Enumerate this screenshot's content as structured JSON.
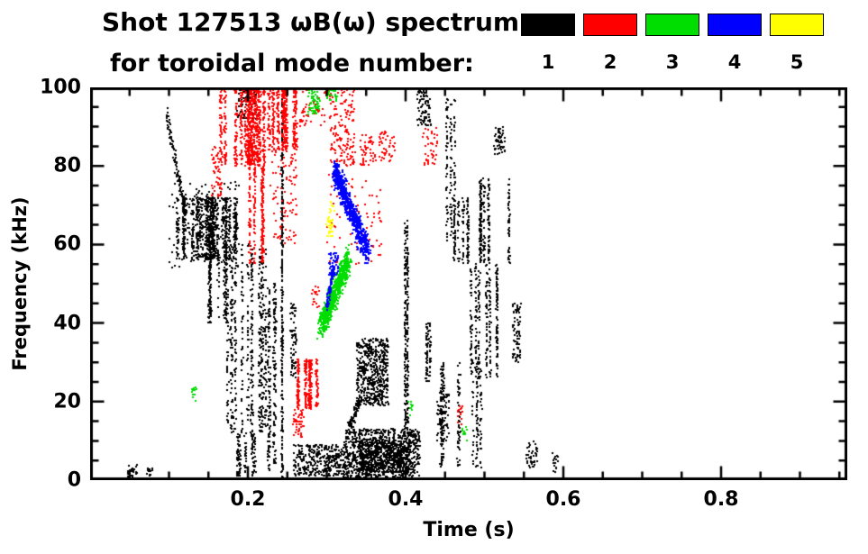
{
  "header": {
    "title_line1": "Shot 127513 ωB(ω) spectrum",
    "title_line2": "for toroidal mode number:",
    "legend": {
      "modes": [
        {
          "label": "1",
          "color": "#000000"
        },
        {
          "label": "2",
          "color": "#ff0000"
        },
        {
          "label": "3",
          "color": "#00dd00"
        },
        {
          "label": "4",
          "color": "#0000ff"
        },
        {
          "label": "5",
          "color": "#ffff00"
        }
      ]
    }
  },
  "chart_data": {
    "type": "scatter",
    "title": "Shot 127513 ωB(ω) spectrum for toroidal mode number",
    "xlabel": "Time (s)",
    "ylabel": "Frequency (kHz)",
    "xlim": [
      0,
      0.96
    ],
    "ylim": [
      0,
      100
    ],
    "x_major_ticks": [
      0.2,
      0.4,
      0.6,
      0.8
    ],
    "x_tick_labels": [
      "0.2",
      "0.4",
      "0.6",
      "0.8"
    ],
    "x_minor_step": 0.05,
    "y_major_ticks": [
      0,
      20,
      40,
      60,
      80,
      100
    ],
    "y_tick_labels": [
      "0",
      "20",
      "40",
      "60",
      "80",
      "100"
    ],
    "y_minor_step": 5,
    "grid": false,
    "legend_position": "top-right",
    "point_size": 2,
    "seed": 42,
    "series": [
      {
        "name": "toroidal mode n=1",
        "color": "#000000",
        "clusters": [
          {
            "shape": "diag",
            "t": [
              0.097,
              0.121
            ],
            "f": [
              93,
              68
            ],
            "n": 110,
            "jt": 0.0025,
            "jf": 2.5
          },
          {
            "shape": "cols",
            "t": [
              0.105,
              0.185
            ],
            "f": [
              56,
              72
            ],
            "n": 900,
            "cols": 26,
            "jt": 0.002
          },
          {
            "shape": "box",
            "t": [
              0.1,
              0.19
            ],
            "f": [
              54,
              76
            ],
            "n": 150
          },
          {
            "shape": "cols",
            "t": [
              0.148,
              0.176
            ],
            "f": [
              40,
              57
            ],
            "n": 180,
            "cols": 8,
            "jt": 0.0015
          },
          {
            "shape": "cols",
            "t": [
              0.168,
              0.225
            ],
            "f": [
              12,
              60
            ],
            "n": 560,
            "cols": 12,
            "jt": 0.0015
          },
          {
            "shape": "cols",
            "t": [
              0.185,
              0.218
            ],
            "f": [
              1,
              12
            ],
            "n": 130,
            "cols": 6,
            "jt": 0.0015
          },
          {
            "shape": "cols",
            "t": [
              0.222,
              0.236
            ],
            "f": [
              2,
              50
            ],
            "n": 200,
            "cols": 4,
            "jt": 0.0015
          },
          {
            "shape": "cols",
            "t": [
              0.238,
              0.245
            ],
            "f": [
              0,
              97
            ],
            "n": 280,
            "cols": 2,
            "jt": 0.0012
          },
          {
            "shape": "cols",
            "t": [
              0.252,
              0.268
            ],
            "f": [
              26,
              45
            ],
            "n": 70,
            "cols": 3,
            "jt": 0.0015
          },
          {
            "shape": "box",
            "t": [
              0.258,
              0.322
            ],
            "f": [
              1,
              9
            ],
            "n": 330
          },
          {
            "shape": "box",
            "t": [
              0.322,
              0.418
            ],
            "f": [
              0,
              13
            ],
            "n": 900
          },
          {
            "shape": "box",
            "t": [
              0.34,
              0.405
            ],
            "f": [
              2,
              10
            ],
            "n": 450
          },
          {
            "shape": "box",
            "t": [
              0.338,
              0.378
            ],
            "f": [
              19,
              36
            ],
            "n": 520
          },
          {
            "shape": "diag",
            "t": [
              0.328,
              0.344
            ],
            "f": [
              13,
              21
            ],
            "n": 90,
            "jt": 0.002,
            "jf": 2
          },
          {
            "shape": "cols",
            "t": [
              0.397,
              0.403
            ],
            "f": [
              13,
              66
            ],
            "n": 240,
            "cols": 2,
            "jt": 0.0012
          },
          {
            "shape": "cols",
            "t": [
              0.436,
              0.496
            ],
            "f": [
              3,
              30
            ],
            "n": 260,
            "cols": 10,
            "jt": 0.0015
          },
          {
            "shape": "cols",
            "t": [
              0.45,
              0.463
            ],
            "f": [
              60,
              97
            ],
            "n": 130,
            "cols": 3,
            "jt": 0.0015
          },
          {
            "shape": "cols",
            "t": [
              0.457,
              0.48
            ],
            "f": [
              55,
              72
            ],
            "n": 150,
            "cols": 5,
            "jt": 0.0015
          },
          {
            "shape": "cols",
            "t": [
              0.483,
              0.52
            ],
            "f": [
              26,
              55
            ],
            "n": 300,
            "cols": 7,
            "jt": 0.0015
          },
          {
            "shape": "cols",
            "t": [
              0.493,
              0.531
            ],
            "f": [
              55,
              77
            ],
            "n": 280,
            "cols": 6,
            "jt": 0.0015
          },
          {
            "shape": "box",
            "t": [
              0.512,
              0.526
            ],
            "f": [
              83,
              90
            ],
            "n": 55
          },
          {
            "shape": "box",
            "t": [
              0.536,
              0.546
            ],
            "f": [
              30,
              45
            ],
            "n": 70
          },
          {
            "shape": "box",
            "t": [
              0.047,
              0.06
            ],
            "f": [
              1,
              4
            ],
            "n": 28
          },
          {
            "shape": "box",
            "t": [
              0.072,
              0.079
            ],
            "f": [
              1,
              3
            ],
            "n": 12
          },
          {
            "shape": "box",
            "t": [
              0.186,
              0.212
            ],
            "f": [
              92,
              100
            ],
            "n": 80
          },
          {
            "shape": "box",
            "t": [
              0.415,
              0.432
            ],
            "f": [
              90,
              100
            ],
            "n": 85
          },
          {
            "shape": "box",
            "t": [
              0.553,
              0.567
            ],
            "f": [
              3,
              10
            ],
            "n": 40
          },
          {
            "shape": "box",
            "t": [
              0.585,
              0.593
            ],
            "f": [
              2,
              7
            ],
            "n": 15
          },
          {
            "shape": "box",
            "t": [
              0.44,
              0.456
            ],
            "f": [
              10,
              22
            ],
            "n": 60
          },
          {
            "shape": "cols",
            "t": [
              0.425,
              0.44
            ],
            "f": [
              25,
              40
            ],
            "n": 80,
            "cols": 3,
            "jt": 0.0015
          }
        ]
      },
      {
        "name": "toroidal mode n=2",
        "color": "#ff0000",
        "clusters": [
          {
            "shape": "cols",
            "t": [
              0.165,
              0.225
            ],
            "f": [
              80,
              100
            ],
            "n": 800,
            "cols": 16,
            "jt": 0.002
          },
          {
            "shape": "cols",
            "t": [
              0.225,
              0.263
            ],
            "f": [
              84,
              100
            ],
            "n": 420,
            "cols": 9,
            "jt": 0.002
          },
          {
            "shape": "cols",
            "t": [
              0.2,
              0.222
            ],
            "f": [
              55,
              80
            ],
            "n": 260,
            "cols": 5,
            "jt": 0.0015
          },
          {
            "shape": "box",
            "t": [
              0.154,
              0.168
            ],
            "f": [
              72,
              85
            ],
            "n": 60
          },
          {
            "shape": "box",
            "t": [
              0.228,
              0.262
            ],
            "f": [
              60,
              84
            ],
            "n": 90
          },
          {
            "shape": "cols",
            "t": [
              0.262,
              0.292
            ],
            "f": [
              18,
              31
            ],
            "n": 330,
            "cols": 6,
            "jt": 0.0018
          },
          {
            "shape": "box",
            "t": [
              0.256,
              0.272
            ],
            "f": [
              11,
              18
            ],
            "n": 45
          },
          {
            "shape": "box",
            "t": [
              0.265,
              0.335
            ],
            "f": [
              90,
              100
            ],
            "n": 120
          },
          {
            "shape": "box",
            "t": [
              0.305,
              0.336
            ],
            "f": [
              80,
              90
            ],
            "n": 90
          },
          {
            "shape": "box",
            "t": [
              0.3,
              0.37
            ],
            "f": [
              55,
              78
            ],
            "n": 70
          },
          {
            "shape": "box",
            "t": [
              0.342,
              0.362
            ],
            "f": [
              80,
              88
            ],
            "n": 50
          },
          {
            "shape": "box",
            "t": [
              0.366,
              0.387
            ],
            "f": [
              81,
              89
            ],
            "n": 45
          },
          {
            "shape": "box",
            "t": [
              0.422,
              0.44
            ],
            "f": [
              80,
              90
            ],
            "n": 40
          },
          {
            "shape": "box",
            "t": [
              0.465,
              0.474
            ],
            "f": [
              14,
              19
            ],
            "n": 14
          },
          {
            "shape": "box",
            "t": [
              0.281,
              0.291
            ],
            "f": [
              44,
              50
            ],
            "n": 18
          }
        ]
      },
      {
        "name": "toroidal mode n=3",
        "color": "#00dd00",
        "clusters": [
          {
            "shape": "diag",
            "t": [
              0.292,
              0.328
            ],
            "f": [
              39,
              56
            ],
            "n": 650,
            "jt": 0.005,
            "jf": 4.5
          },
          {
            "shape": "box",
            "t": [
              0.276,
              0.292
            ],
            "f": [
              93,
              100
            ],
            "n": 70
          },
          {
            "shape": "box",
            "t": [
              0.3,
              0.313
            ],
            "f": [
              96,
              100
            ],
            "n": 25
          },
          {
            "shape": "box",
            "t": [
              0.128,
              0.136
            ],
            "f": [
              20,
              24
            ],
            "n": 12
          },
          {
            "shape": "box",
            "t": [
              0.47,
              0.478
            ],
            "f": [
              10,
              14
            ],
            "n": 10
          },
          {
            "shape": "box",
            "t": [
              0.403,
              0.411
            ],
            "f": [
              16,
              20
            ],
            "n": 10
          }
        ]
      },
      {
        "name": "toroidal mode n=4",
        "color": "#0000ff",
        "clusters": [
          {
            "shape": "diag",
            "t": [
              0.31,
              0.352
            ],
            "f": [
              79,
              58
            ],
            "n": 750,
            "jt": 0.005,
            "jf": 4
          },
          {
            "shape": "diag",
            "t": [
              0.3,
              0.309
            ],
            "f": [
              44,
              54
            ],
            "n": 80,
            "jt": 0.002,
            "jf": 1.5
          },
          {
            "shape": "box",
            "t": [
              0.303,
              0.315
            ],
            "f": [
              52,
              58
            ],
            "n": 50
          }
        ]
      },
      {
        "name": "toroidal mode n=5",
        "color": "#ffff00",
        "clusters": [
          {
            "shape": "box",
            "t": [
              0.298,
              0.308
            ],
            "f": [
              62,
              67
            ],
            "n": 30
          },
          {
            "shape": "box",
            "t": [
              0.304,
              0.31
            ],
            "f": [
              68,
              71
            ],
            "n": 10
          }
        ]
      }
    ]
  }
}
